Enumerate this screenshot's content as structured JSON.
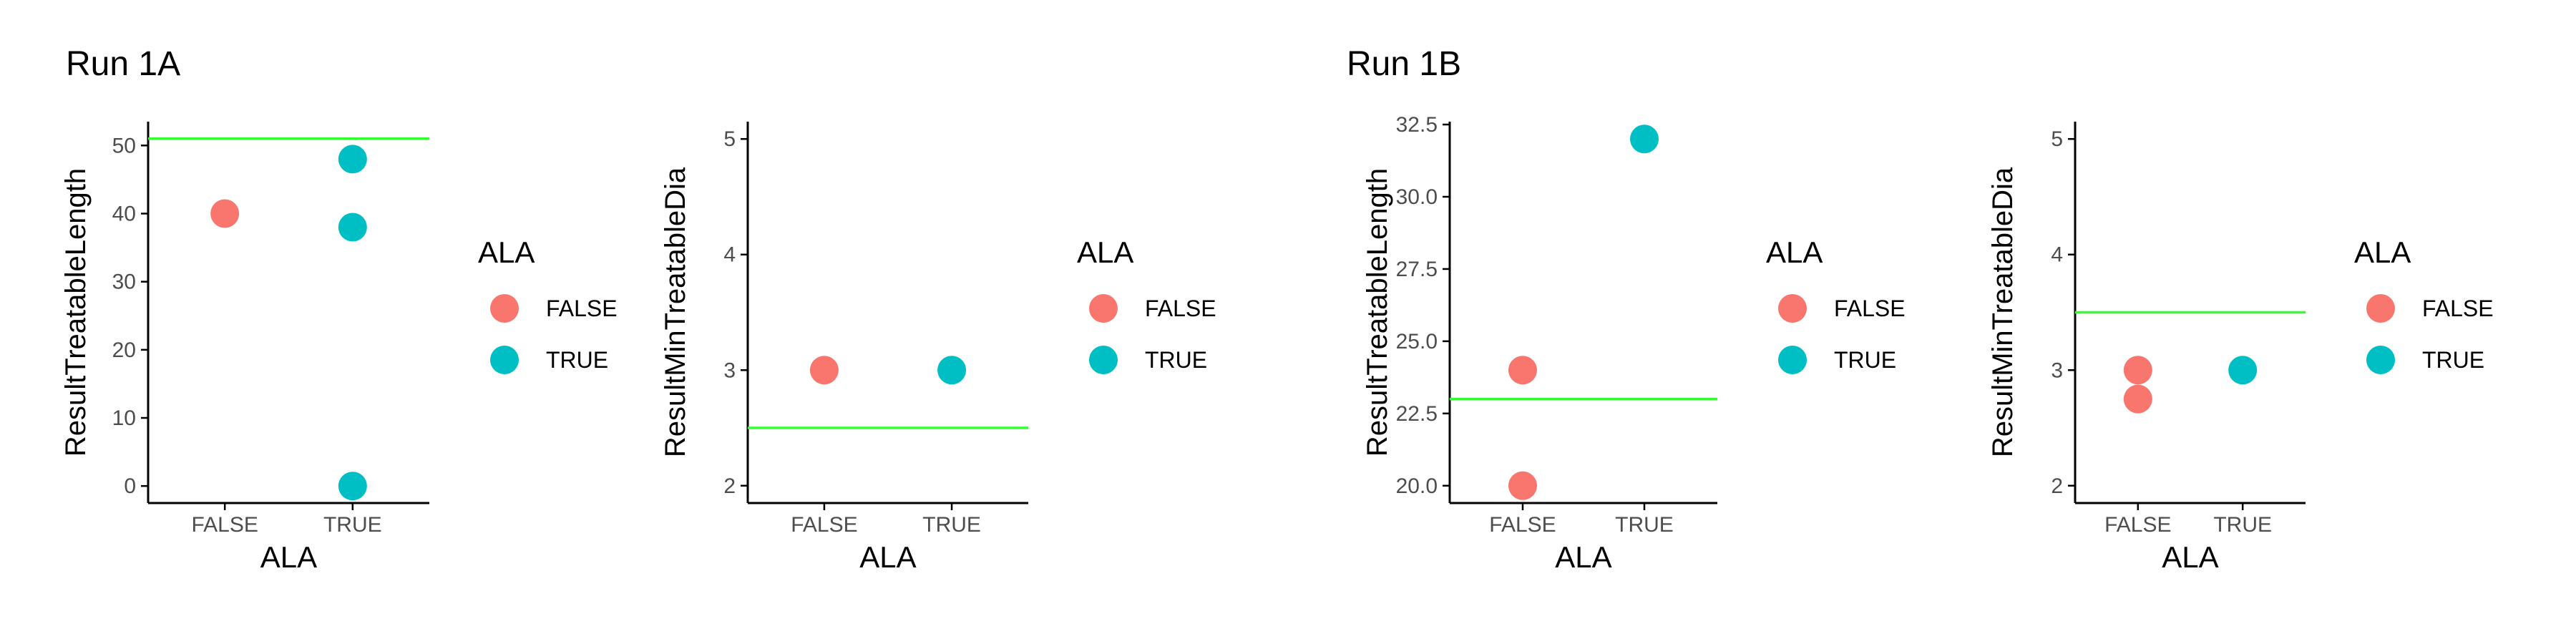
{
  "titles": [
    "Run 1A",
    "Run 1B"
  ],
  "colors": {
    "false": "#F8766D",
    "true": "#00BFC4",
    "hline": "#33FF33",
    "axis": "#000000"
  },
  "chart_data": [
    {
      "type": "scatter",
      "xlabel": "ALA",
      "ylabel": "ResultTreatableLength",
      "categories": [
        "FALSE",
        "TRUE"
      ],
      "yticks": [
        "0",
        "10",
        "20",
        "30",
        "40",
        "50"
      ],
      "ylim": [
        -2.5,
        53.5
      ],
      "hline": 51,
      "series": [
        {
          "name": "FALSE",
          "x": [
            "FALSE"
          ],
          "y": [
            40
          ]
        },
        {
          "name": "TRUE",
          "x": [
            "TRUE",
            "TRUE",
            "TRUE"
          ],
          "y": [
            48,
            38,
            0
          ]
        }
      ],
      "legend": {
        "title": "ALA",
        "entries": [
          "FALSE",
          "TRUE"
        ]
      }
    },
    {
      "type": "scatter",
      "xlabel": "ALA",
      "ylabel": "ResultMinTreatableDia",
      "categories": [
        "FALSE",
        "TRUE"
      ],
      "yticks": [
        "2",
        "3",
        "4",
        "5"
      ],
      "ylim": [
        1.85,
        5.15
      ],
      "hline": 2.5,
      "series": [
        {
          "name": "FALSE",
          "x": [
            "FALSE"
          ],
          "y": [
            3
          ]
        },
        {
          "name": "TRUE",
          "x": [
            "TRUE"
          ],
          "y": [
            3
          ]
        }
      ],
      "legend": {
        "title": "ALA",
        "entries": [
          "FALSE",
          "TRUE"
        ]
      }
    },
    {
      "type": "scatter",
      "xlabel": "ALA",
      "ylabel": "ResultTreatableLength",
      "categories": [
        "FALSE",
        "TRUE"
      ],
      "yticks": [
        "20.0",
        "22.5",
        "25.0",
        "27.5",
        "30.0",
        "32.5"
      ],
      "ylim": [
        19.4,
        32.6
      ],
      "hline": 23,
      "series": [
        {
          "name": "FALSE",
          "x": [
            "FALSE",
            "FALSE"
          ],
          "y": [
            24,
            20
          ]
        },
        {
          "name": "TRUE",
          "x": [
            "TRUE"
          ],
          "y": [
            32
          ]
        }
      ],
      "legend": {
        "title": "ALA",
        "entries": [
          "FALSE",
          "TRUE"
        ]
      }
    },
    {
      "type": "scatter",
      "xlabel": "ALA",
      "ylabel": "ResultMinTreatableDia",
      "categories": [
        "FALSE",
        "TRUE"
      ],
      "yticks": [
        "2",
        "3",
        "4",
        "5"
      ],
      "ylim": [
        1.85,
        5.15
      ],
      "hline": 3.5,
      "series": [
        {
          "name": "FALSE",
          "x": [
            "FALSE",
            "FALSE"
          ],
          "y": [
            3,
            2.75
          ]
        },
        {
          "name": "TRUE",
          "x": [
            "TRUE"
          ],
          "y": [
            3
          ]
        }
      ],
      "legend": {
        "title": "ALA",
        "entries": [
          "FALSE",
          "TRUE"
        ]
      }
    }
  ]
}
